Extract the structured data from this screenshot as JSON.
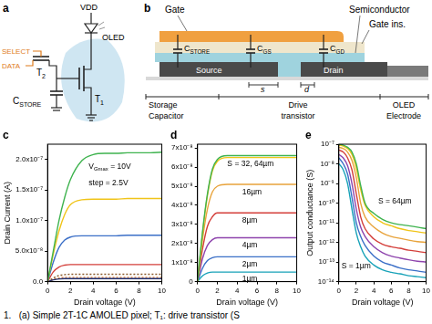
{
  "diagram_a": {
    "panel": "a",
    "labels": {
      "vdd": "VDD",
      "oled": "OLED",
      "select": "SELECT",
      "data": "DATA",
      "t2": [
        {
          "text": "T"
        },
        {
          "text": "2",
          "sub": true
        }
      ],
      "cstore": [
        {
          "text": "C"
        },
        {
          "text": "STORE",
          "sub": true
        }
      ],
      "t1": [
        {
          "text": "T"
        },
        {
          "text": "1",
          "sub": true
        }
      ]
    }
  },
  "diagram_b": {
    "panel": "b",
    "labels": {
      "gate": "Gate",
      "semiconductor": "Semiconductor",
      "gate_ins": "Gate ins.",
      "cstore": [
        {
          "text": "C"
        },
        {
          "text": "STORE",
          "sub": true
        }
      ],
      "cgs": [
        {
          "text": "C"
        },
        {
          "text": "GS",
          "sub": true
        }
      ],
      "cgd": [
        {
          "text": "C"
        },
        {
          "text": "GD",
          "sub": true
        }
      ],
      "source": "Source",
      "drain": "Drain",
      "s": "s",
      "d": "d",
      "storage": "Storage",
      "capacitor": "Capacitor",
      "drive": "Drive",
      "transistor": "transistor",
      "oled": "OLED",
      "electrode": "Electrode"
    }
  },
  "chart_data": [
    {
      "type": "line",
      "panel": "c",
      "x_label": "Drain voltage (V)",
      "y_label": "Drain Current (A)",
      "grid": false,
      "x": [
        0,
        0.5,
        1,
        1.5,
        2,
        3,
        4,
        5,
        6,
        7,
        8,
        9,
        10
      ],
      "xlim": [
        0,
        10
      ],
      "xticks": [
        0,
        2,
        4,
        6,
        8,
        10
      ],
      "ylim": [
        0,
        2.25e-07
      ],
      "yticks": [
        {
          "value": 0,
          "label": "0.0"
        },
        {
          "value": 5e-08,
          "label": "5.0x10⁻⁸"
        },
        {
          "value": 1e-07,
          "label": "1.0x10⁻⁷"
        },
        {
          "value": 1.5e-07,
          "label": "1.5x10⁻⁷"
        },
        {
          "value": 2e-07,
          "label": "2.0x10⁻⁷"
        }
      ],
      "annotations": [
        {
          "text": [
            {
              "text": "V"
            },
            {
              "text": "Gmax",
              "sub": true
            },
            {
              "text": " = 10V"
            }
          ],
          "x": 3.6,
          "y": 1.95e-07
        },
        {
          "text": "step = 2.5V",
          "x": 3.6,
          "y": 1.68e-07
        }
      ],
      "series": [
        {
          "color": "#3fb34f",
          "line_style": "solid",
          "values": [
            0,
            5e-08,
            1e-07,
            1.38e-07,
            1.67e-07,
            1.98e-07,
            2.08e-07,
            2.1e-07,
            2.1e-07,
            2.11e-07,
            2.11e-07,
            2.11e-07,
            2.12e-07
          ]
        },
        {
          "color": "#f0c419",
          "line_style": "solid",
          "values": [
            0,
            4.5e-08,
            8.3e-08,
            1.1e-07,
            1.26e-07,
            1.34e-07,
            1.35e-07,
            1.35e-07,
            1.35e-07,
            1.36e-07,
            1.36e-07,
            1.36e-07,
            1.36e-07
          ]
        },
        {
          "color": "#3b6fc7",
          "line_style": "solid",
          "values": [
            0,
            3.2e-08,
            5.6e-08,
            6.8e-08,
            7.3e-08,
            7.5e-08,
            7.5e-08,
            7.5e-08,
            7.5e-08,
            7.6e-08,
            7.6e-08,
            7.6e-08,
            7.6e-08
          ]
        },
        {
          "color": "#d43f3a",
          "line_style": "solid",
          "values": [
            0,
            1.6e-08,
            2.4e-08,
            2.7e-08,
            2.8e-08,
            2.8e-08,
            2.8e-08,
            2.8e-08,
            2.8e-08,
            2.8e-08,
            2.8e-08,
            2.8e-08,
            2.8e-08
          ]
        },
        {
          "color": "#1f2d6b",
          "line_style": "solid",
          "values": [
            0,
            3e-09,
            4.5e-09,
            5e-09,
            5e-09,
            5e-09,
            5e-09,
            5e-09,
            5e-09,
            5e-09,
            5e-09,
            5e-09,
            5e-09
          ]
        },
        {
          "color": "#8b5a2b",
          "line_style": "dotted",
          "values": [
            0,
            6e-09,
            1e-08,
            1.15e-08,
            1.2e-08,
            1.2e-08,
            1.2e-08,
            1.2e-08,
            1.2e-08,
            1.2e-08,
            1.2e-08,
            1.2e-08,
            1.2e-08
          ]
        },
        {
          "color": "#e07b39",
          "line_style": "dotted",
          "values": [
            0,
            3.5e-09,
            6e-09,
            7e-09,
            7e-09,
            7e-09,
            7e-09,
            7e-09,
            7e-09,
            7e-09,
            7e-09,
            7e-09,
            7e-09
          ]
        }
      ]
    },
    {
      "type": "line",
      "panel": "d",
      "x_label": "Drain voltage (V)",
      "grid": false,
      "x": [
        0,
        0.5,
        1,
        1.5,
        2,
        3,
        4,
        5,
        6,
        7,
        8,
        9,
        10
      ],
      "xlim": [
        0,
        10
      ],
      "xticks": [
        0,
        2,
        4,
        6,
        8,
        10
      ],
      "ylim": [
        0,
        7.2e-08
      ],
      "yticks": [
        0,
        {
          "value": 1e-08,
          "label": "1x10⁻⁸"
        },
        {
          "value": 2e-08,
          "label": "2x10⁻⁸"
        },
        {
          "value": 3e-08,
          "label": "3x10⁻⁸"
        },
        {
          "value": 4e-08,
          "label": "4x10⁻⁸"
        },
        {
          "value": 5e-08,
          "label": "5x10⁻⁸"
        },
        {
          "value": 6e-08,
          "label": "6x10⁻⁸"
        },
        {
          "value": 7e-08,
          "label": "7x10⁻⁸"
        }
      ],
      "annotations": [
        {
          "text": "S = 32, 64µm",
          "x": 3,
          "y": 6.35e-08
        },
        {
          "text": "16µm",
          "x": 4.5,
          "y": 4.9e-08
        },
        {
          "text": "8µm",
          "x": 4.5,
          "y": 3.4e-08
        },
        {
          "text": "4µm",
          "x": 4.5,
          "y": 2.1e-08
        },
        {
          "text": "2µm",
          "x": 4.5,
          "y": 1.1e-08
        },
        {
          "text": "1µm",
          "x": 4.5,
          "y": 3.5e-09
        }
      ],
      "series": [
        {
          "color": "#3fb34f",
          "line_style": "solid",
          "values": [
            0,
            2.6e-08,
            4.6e-08,
            5.9e-08,
            6.4e-08,
            6.6e-08,
            6.6e-08,
            6.6e-08,
            6.6e-08,
            6.6e-08,
            6.6e-08,
            6.6e-08,
            6.6e-08
          ]
        },
        {
          "color": "#f0c419",
          "line_style": "solid",
          "values": [
            0,
            2.5e-08,
            4.5e-08,
            5.8e-08,
            6.3e-08,
            6.5e-08,
            6.5e-08,
            6.5e-08,
            6.5e-08,
            6.5e-08,
            6.5e-08,
            6.5e-08,
            6.5e-08
          ]
        },
        {
          "color": "#e8a33b",
          "line_style": "solid",
          "values": [
            0,
            2.2e-08,
            3.8e-08,
            4.7e-08,
            5e-08,
            5.1e-08,
            5.1e-08,
            5.1e-08,
            5.1e-08,
            5.1e-08,
            5.1e-08,
            5.1e-08,
            5.1e-08
          ]
        },
        {
          "color": "#d43f3a",
          "line_style": "solid",
          "values": [
            0,
            1.7e-08,
            2.9e-08,
            3.4e-08,
            3.6e-08,
            3.6e-08,
            3.6e-08,
            3.6e-08,
            3.6e-08,
            3.6e-08,
            3.6e-08,
            3.6e-08,
            3.6e-08
          ]
        },
        {
          "color": "#8e44ad",
          "line_style": "solid",
          "values": [
            0,
            1.2e-08,
            1.9e-08,
            2.2e-08,
            2.3e-08,
            2.3e-08,
            2.3e-08,
            2.3e-08,
            2.3e-08,
            2.3e-08,
            2.3e-08,
            2.3e-08,
            2.3e-08
          ]
        },
        {
          "color": "#3b6fc7",
          "line_style": "solid",
          "values": [
            0,
            7e-09,
            1.1e-08,
            1.25e-08,
            1.3e-08,
            1.3e-08,
            1.3e-08,
            1.3e-08,
            1.3e-08,
            1.3e-08,
            1.3e-08,
            1.3e-08,
            1.3e-08
          ]
        },
        {
          "color": "#17a2b8",
          "line_style": "solid",
          "values": [
            0,
            3e-09,
            4.5e-09,
            5e-09,
            5e-09,
            5e-09,
            5e-09,
            5e-09,
            5e-09,
            5e-09,
            5e-09,
            5e-09,
            5e-09
          ]
        }
      ]
    },
    {
      "type": "line",
      "panel": "e",
      "x_label": "Drain voltage (V)",
      "y_label": "Output conductance (S)",
      "grid": false,
      "log": "y",
      "x": [
        0,
        0.5,
        1,
        1.5,
        2,
        2.5,
        3,
        4,
        5,
        6,
        7,
        8,
        9,
        10
      ],
      "xlim": [
        0,
        10
      ],
      "xticks": [
        0,
        2,
        4,
        6,
        8,
        10
      ],
      "ylim": [
        1e-14,
        1e-07
      ],
      "yticks": [
        {
          "value": 1e-14,
          "label": "10⁻¹⁴"
        },
        {
          "value": 1e-13,
          "label": "10⁻¹³"
        },
        {
          "value": 1e-12,
          "label": "10⁻¹²"
        },
        {
          "value": 1e-11,
          "label": "10⁻¹¹"
        },
        {
          "value": 1e-10,
          "label": "10⁻¹⁰"
        },
        {
          "value": 1e-09,
          "label": "10⁻⁹"
        },
        {
          "value": 1e-08,
          "label": "10⁻⁸"
        },
        {
          "value": 1e-07,
          "label": "10⁻⁷"
        }
      ],
      "annotations": [
        {
          "text": "S = 64µm",
          "x": 4.5,
          "y": 2e-10
        },
        {
          "text": "S = 1µm",
          "x": 0.3,
          "y": 1e-13
        }
      ],
      "series": [
        {
          "color": "#3fb34f",
          "line_style": "solid",
          "values": [
            1e-07,
            9e-08,
            7e-08,
            4e-08,
            1e-08,
            8e-10,
            1e-10,
            3e-11,
            1.5e-11,
            1e-11,
            8e-12,
            7e-12,
            6e-12,
            5e-12
          ]
        },
        {
          "color": "#f0c419",
          "line_style": "solid",
          "values": [
            9e-08,
            8e-08,
            6e-08,
            3e-08,
            6e-09,
            5e-10,
            8e-11,
            2e-11,
            1e-11,
            7e-12,
            5e-12,
            4e-12,
            3.5e-12,
            3e-12
          ]
        },
        {
          "color": "#e8a33b",
          "line_style": "solid",
          "values": [
            7e-08,
            6e-08,
            4e-08,
            1.5e-08,
            2e-09,
            1e-10,
            2e-11,
            6e-12,
            3e-12,
            2e-12,
            1.6e-12,
            1.3e-12,
            1.1e-12,
            1e-12
          ]
        },
        {
          "color": "#d43f3a",
          "line_style": "solid",
          "values": [
            5e-08,
            4e-08,
            2e-08,
            5e-09,
            3e-10,
            2e-11,
            5e-12,
            1.5e-12,
            8e-13,
            6e-13,
            5e-13,
            4e-13,
            3.5e-13,
            3e-13
          ]
        },
        {
          "color": "#8e44ad",
          "line_style": "solid",
          "values": [
            3e-08,
            2e-08,
            8e-09,
            1e-09,
            5e-11,
            6e-12,
            2e-12,
            6e-13,
            3e-13,
            2e-13,
            1.6e-13,
            1.3e-13,
            1.1e-13,
            1e-13
          ]
        },
        {
          "color": "#3b6fc7",
          "line_style": "solid",
          "values": [
            2e-08,
            1e-08,
            3e-09,
            2e-10,
            1e-11,
            2e-12,
            7e-13,
            2e-13,
            1e-13,
            7e-14,
            5e-14,
            4e-14,
            3.5e-14,
            3e-14
          ]
        },
        {
          "color": "#17a2b8",
          "line_style": "solid",
          "values": [
            1e-08,
            5e-09,
            1e-09,
            5e-11,
            3e-12,
            6e-13,
            2e-13,
            7e-14,
            4e-14,
            3e-14,
            2.5e-14,
            2e-14,
            1.8e-14,
            1.6e-14
          ]
        }
      ]
    }
  ],
  "caption": "1.   (a) Simple 2T-1C AMOLED pixel; T₁: drive transistor (S"
}
